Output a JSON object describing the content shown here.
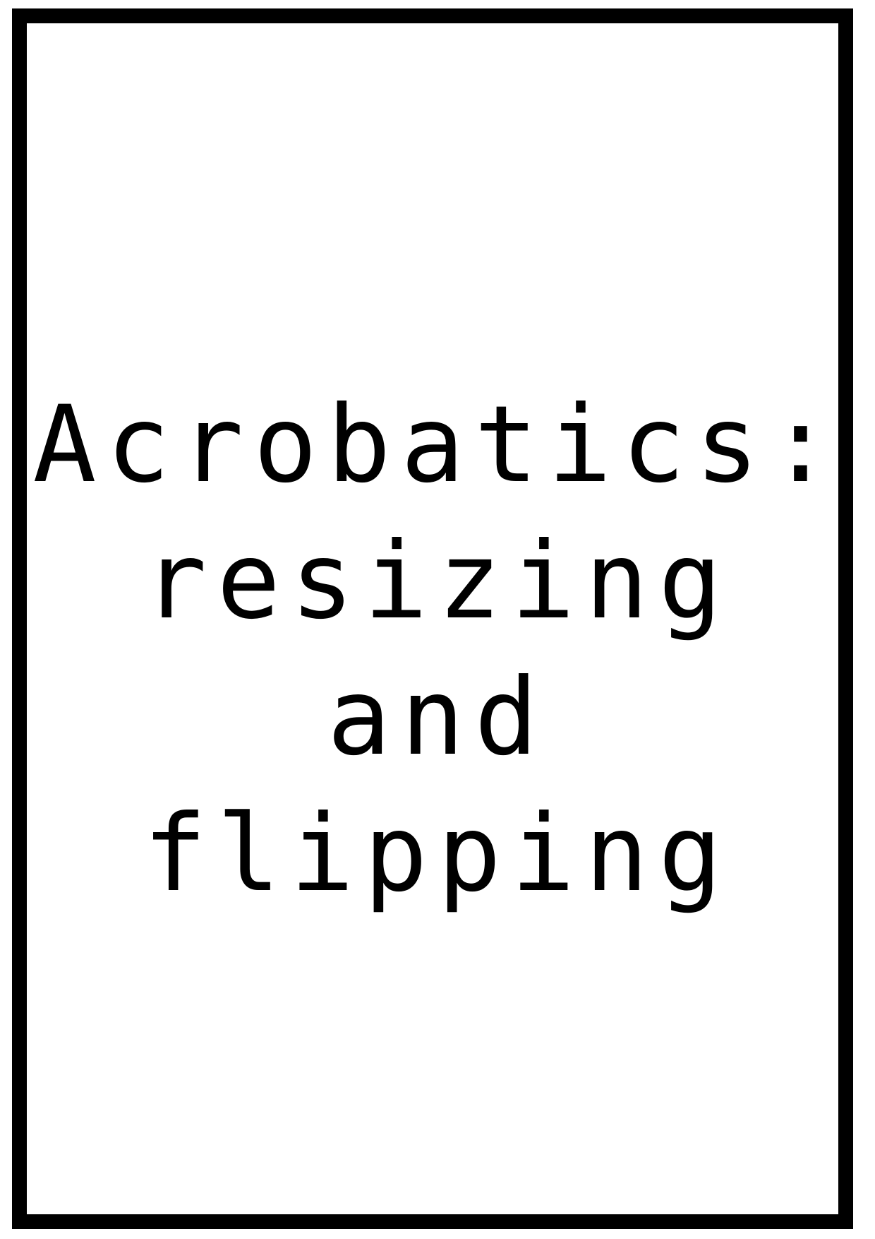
{
  "document": {
    "title_lines": [
      "Acrobatics:",
      "resizing",
      "and",
      "flipping"
    ]
  }
}
